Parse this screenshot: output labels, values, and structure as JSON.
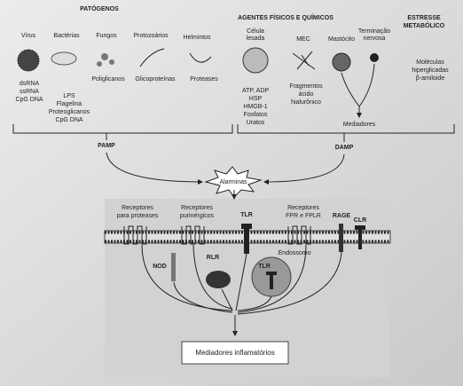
{
  "pathogens": {
    "title": "PATÓGENOS",
    "items": [
      {
        "name": "Vírus",
        "molecules": [
          "dsRNA",
          "ssRNA",
          "CpG DNA"
        ]
      },
      {
        "name": "Bactérias",
        "molecules": [
          "LPS",
          "Flagelina",
          "Proteoglicanos",
          "CpG DNA"
        ]
      },
      {
        "name": "Fungos",
        "molecules": [
          "Poliglicanos"
        ]
      },
      {
        "name": "Protozoários",
        "molecules": [
          "Glicoproteínas"
        ]
      },
      {
        "name": "Helmintos",
        "molecules": [
          "Proteases"
        ]
      }
    ]
  },
  "damage": {
    "title": "AGENTES FÍSICOS E QUÍMICOS",
    "items": [
      {
        "name": [
          "Célula",
          "lesada"
        ],
        "molecules": [
          "ATP, ADP",
          "HSP",
          "HMGB-1",
          "Fosfatos",
          "Uratos"
        ]
      },
      {
        "name": [
          "MEC"
        ],
        "molecules": [
          "Fragmentos",
          "ácido",
          "hialurônico"
        ]
      },
      {
        "name": [
          "Mastócito"
        ]
      },
      {
        "name": [
          "Terminação",
          "nervosa"
        ]
      }
    ],
    "mediators": "Mediadores"
  },
  "metabolic": {
    "title": [
      "ESTRESSE",
      "METABÓLICO"
    ],
    "molecules": [
      "Moléculas",
      "hiperglicadas",
      "β-amiloide"
    ]
  },
  "pamp": "PAMP",
  "damp": "DAMP",
  "alarmins": "Alarminas",
  "cell": {
    "receptors": [
      [
        "Receptores",
        "para proteases"
      ],
      [
        "Receptores",
        "purinérgicos"
      ],
      [
        "TLR"
      ],
      [
        "Receptores",
        "FPR e FPLR"
      ],
      [
        "RAGE"
      ],
      [
        "CLR"
      ],
      [
        "NOD"
      ],
      [
        "RLR"
      ]
    ],
    "endosome": "Endossomo",
    "endosome_receptor": "TLR",
    "output": "Mediadores inflamatórios"
  }
}
